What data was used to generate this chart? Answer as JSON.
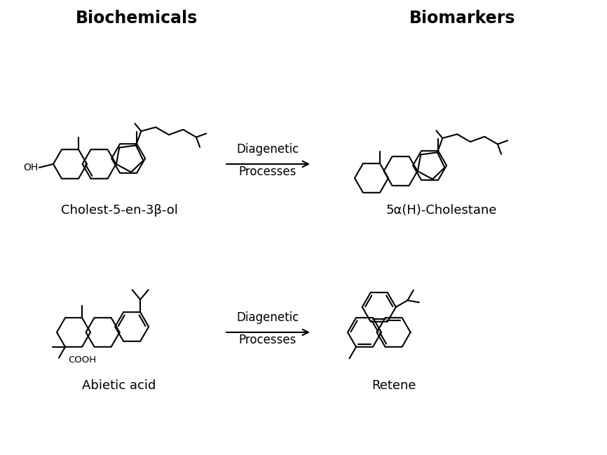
{
  "title_left": "Biochemicals",
  "title_right": "Biomarkers",
  "label_cholesterol": "Cholest-5-en-3β-ol",
  "label_cholestane": "5α(H)-Cholestane",
  "label_abietic": "Abietic acid",
  "label_retene": "Retene",
  "arrow_text_top": "Diagenetic\nProcesses",
  "arrow_text_bottom": "Diagenetic\nProcesses",
  "bg_color": "#ffffff",
  "line_color": "#000000",
  "title_fontsize": 17,
  "label_fontsize": 13,
  "arrow_fontsize": 12
}
